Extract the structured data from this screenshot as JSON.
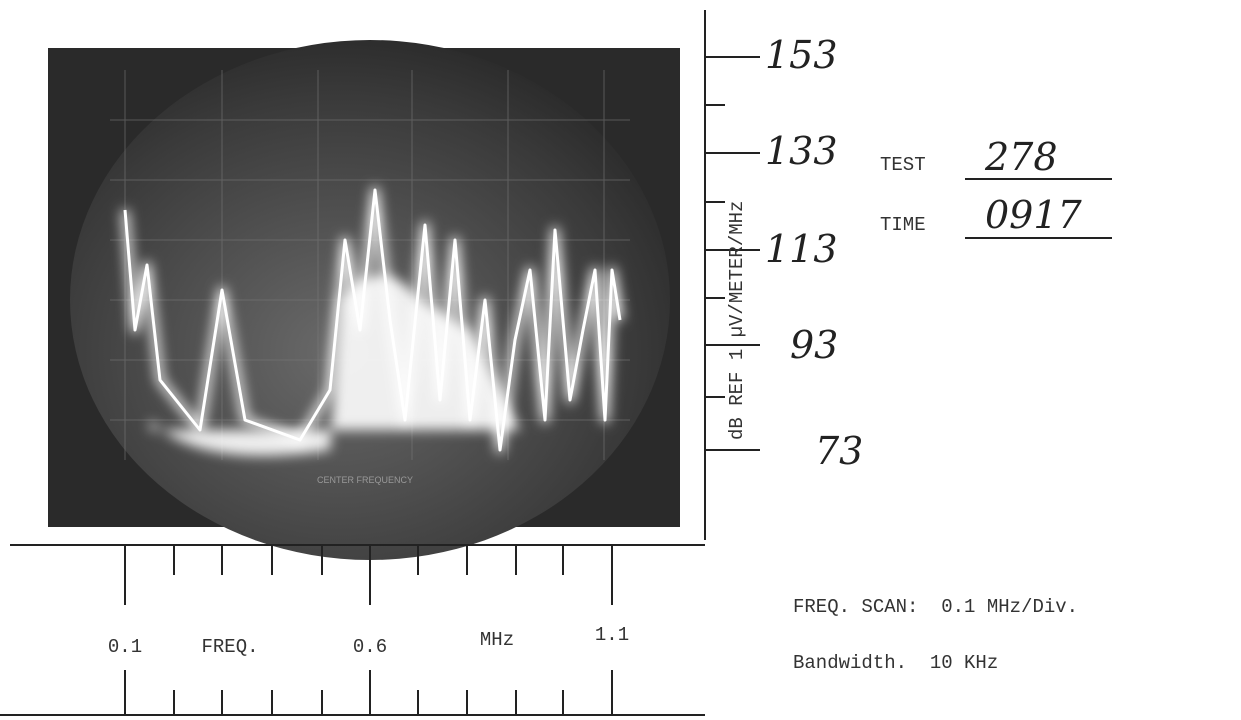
{
  "y_axis": {
    "label": "dB REF 1 µV/METER/MHz",
    "ticks": [
      "153",
      "133",
      "113",
      "93",
      "73"
    ]
  },
  "x_axis": {
    "labels": [
      "0.1",
      "FREQ.",
      "0.6",
      "MHz",
      "1.1"
    ]
  },
  "photo": {
    "caption": "CENTER FREQUENCY"
  },
  "test": {
    "label": "TEST",
    "value": "278"
  },
  "time": {
    "label": "TIME",
    "value": "0917"
  },
  "notes": [
    "FREQ. SCAN:  0.1 MHz/Div.",
    "Bandwidth.  10 KHz"
  ]
}
